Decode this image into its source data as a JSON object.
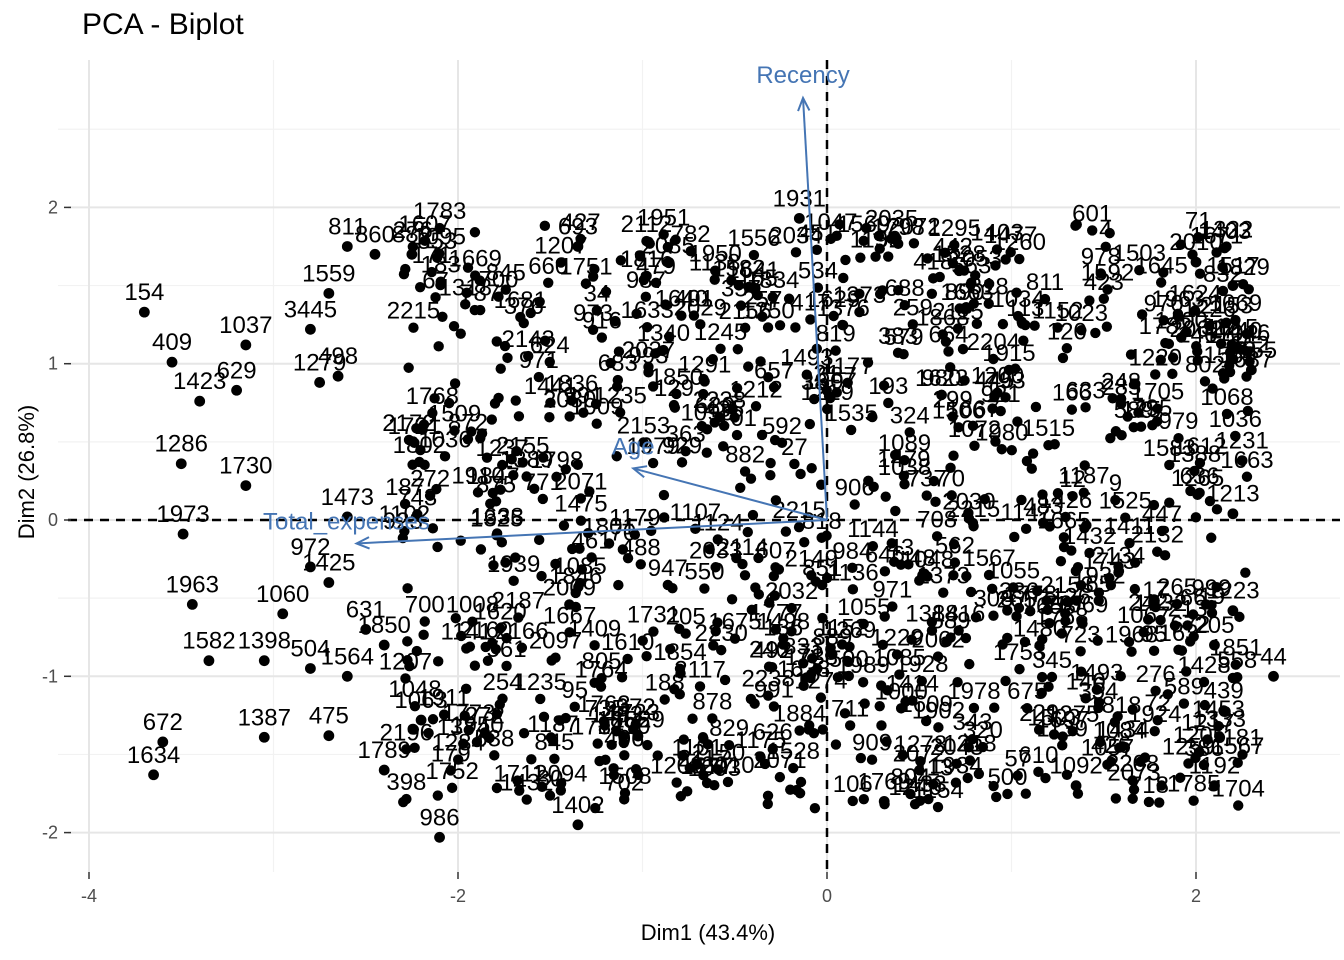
{
  "chart_data": {
    "type": "scatter",
    "title": "PCA - Biplot",
    "xlabel": "Dim1 (43.4%)",
    "ylabel": "Dim2 (26.8%)",
    "xlim": [
      -4,
      2.5
    ],
    "ylim": [
      -2.2,
      2.6
    ],
    "xticks": [
      -4,
      -2,
      0,
      2
    ],
    "yticks": [
      -2,
      -1,
      0,
      1,
      2
    ],
    "x_tick_labels": [
      "-4",
      "-2",
      "0",
      "2"
    ],
    "y_tick_labels": [
      "-2",
      "-1",
      "0",
      "1",
      "2"
    ],
    "grid": true,
    "reference_lines": {
      "x": 0,
      "y": 0
    },
    "point_color": "#000000",
    "variable_color": "#4575b4",
    "labeled_points": [
      {
        "label": "154",
        "x": -3.7,
        "y": 1.33
      },
      {
        "label": "409",
        "x": -3.55,
        "y": 1.01
      },
      {
        "label": "1037",
        "x": -3.15,
        "y": 1.12
      },
      {
        "label": "629",
        "x": -3.2,
        "y": 0.83
      },
      {
        "label": "1423",
        "x": -3.4,
        "y": 0.76
      },
      {
        "label": "1286",
        "x": -3.5,
        "y": 0.36
      },
      {
        "label": "1730",
        "x": -3.15,
        "y": 0.22
      },
      {
        "label": "1973",
        "x": -3.49,
        "y": -0.09
      },
      {
        "label": "1963",
        "x": -3.44,
        "y": -0.54
      },
      {
        "label": "1582",
        "x": -3.35,
        "y": -0.9
      },
      {
        "label": "1060",
        "x": -2.95,
        "y": -0.6
      },
      {
        "label": "1398",
        "x": -3.05,
        "y": -0.9
      },
      {
        "label": "504",
        "x": -2.8,
        "y": -0.95
      },
      {
        "label": "672",
        "x": -3.6,
        "y": -1.42
      },
      {
        "label": "1634",
        "x": -3.65,
        "y": -1.63
      },
      {
        "label": "1387",
        "x": -3.05,
        "y": -1.39
      },
      {
        "label": "475",
        "x": -2.7,
        "y": -1.38
      },
      {
        "label": "811",
        "x": -2.6,
        "y": 1.75
      },
      {
        "label": "860",
        "x": -2.45,
        "y": 1.7
      },
      {
        "label": "882",
        "x": -2.25,
        "y": 1.7
      },
      {
        "label": "1559",
        "x": -2.7,
        "y": 1.45
      },
      {
        "label": "3445",
        "x": -2.8,
        "y": 1.22
      },
      {
        "label": "498",
        "x": -2.65,
        "y": 0.92
      },
      {
        "label": "1279",
        "x": -2.75,
        "y": 0.88
      },
      {
        "label": "1473",
        "x": -2.6,
        "y": 0.02
      },
      {
        "label": "972",
        "x": -2.8,
        "y": -0.3
      },
      {
        "label": "1425",
        "x": -2.7,
        "y": -0.4
      },
      {
        "label": "631",
        "x": -2.5,
        "y": -0.7
      },
      {
        "label": "1850",
        "x": -2.4,
        "y": -0.8
      },
      {
        "label": "1564",
        "x": -2.6,
        "y": -1.0
      },
      {
        "label": "1789",
        "x": -2.4,
        "y": -1.6
      },
      {
        "label": "1063",
        "x": -2.2,
        "y": -1.28
      },
      {
        "label": "986",
        "x": -2.1,
        "y": -2.03
      },
      {
        "label": "1931",
        "x": -0.15,
        "y": 1.93
      },
      {
        "label": "2035",
        "x": 0.35,
        "y": 1.8
      },
      {
        "label": "693",
        "x": -1.35,
        "y": 1.75
      },
      {
        "label": "1402",
        "x": -1.35,
        "y": -1.95
      },
      {
        "label": "1769",
        "x": 0.31,
        "y": -1.8
      },
      {
        "label": "1092",
        "x": 1.35,
        "y": -1.7
      },
      {
        "label": "2010",
        "x": 2.0,
        "y": 1.65
      },
      {
        "label": "1517",
        "x": 2.2,
        "y": 1.5
      },
      {
        "label": "1155",
        "x": 2.3,
        "y": 0.96
      },
      {
        "label": "1231",
        "x": 2.25,
        "y": 0.38
      },
      {
        "label": "1213",
        "x": 2.2,
        "y": 0.04
      },
      {
        "label": "1223",
        "x": 2.2,
        "y": -0.58
      },
      {
        "label": "44",
        "x": 2.42,
        "y": -1.0
      },
      {
        "label": "439",
        "x": 2.15,
        "y": -1.22
      },
      {
        "label": "1192",
        "x": 2.1,
        "y": -1.7
      },
      {
        "label": "205",
        "x": 2.1,
        "y": -0.8
      }
    ],
    "variables": [
      {
        "name": "Recency",
        "x": -0.13,
        "y": 2.7
      },
      {
        "name": "Age",
        "x": -1.05,
        "y": 0.33
      },
      {
        "name": "Total_expenses",
        "x": -2.55,
        "y": -0.15
      }
    ],
    "point_cloud": {
      "x_range": [
        -2.3,
        2.3
      ],
      "y_range": [
        -1.85,
        1.9
      ],
      "estimated_count": 2000
    }
  }
}
